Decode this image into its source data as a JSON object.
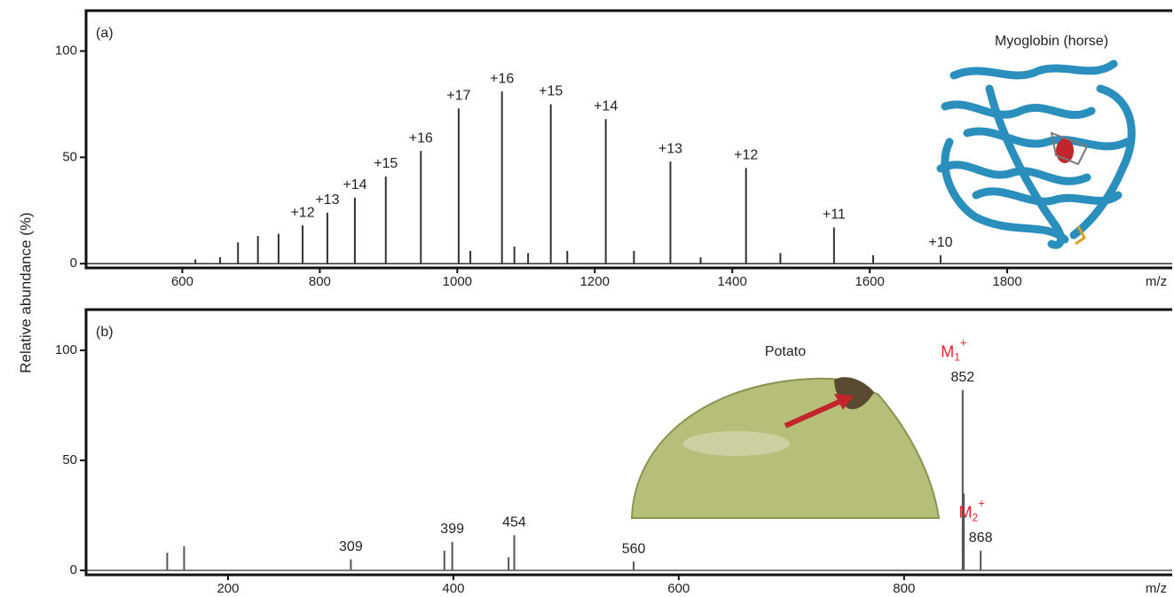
{
  "chart_data": [
    {
      "type": "stick",
      "panel": "(a)",
      "inset_title": "Myoglobin (horse)",
      "xlabel": "m/z",
      "ylabel": "Relative abundance (%)",
      "xlim": [
        460,
        2040
      ],
      "ylim": [
        -2,
        119
      ],
      "xticks": [
        600,
        800,
        1000,
        1200,
        1400,
        1600,
        1800
      ],
      "yticks": [
        0,
        50,
        100
      ],
      "color": "#333333",
      "x": [
        619,
        655,
        681,
        710,
        740,
        775,
        811,
        851,
        896,
        947,
        1002,
        1019,
        1065,
        1083,
        1103,
        1136,
        1160,
        1216,
        1257,
        1310,
        1354,
        1420,
        1470,
        1548,
        1605,
        1703
      ],
      "values": [
        2,
        3,
        10,
        13,
        14,
        18,
        24,
        31,
        41,
        53,
        73,
        6,
        81,
        8,
        5,
        75,
        6,
        68,
        6,
        48,
        3,
        45,
        5,
        17,
        4,
        4
      ],
      "peak_labels": [
        null,
        null,
        null,
        null,
        null,
        "+12",
        "+13",
        "+14",
        "+15",
        "+16",
        "+17",
        null,
        "+16",
        null,
        null,
        "+15",
        null,
        "+14",
        null,
        "+13",
        null,
        "+12",
        null,
        "+11",
        null,
        "+10"
      ]
    },
    {
      "type": "stick",
      "panel": "(b)",
      "inset_title": "Potato",
      "xlabel": "m/z",
      "xlim": [
        74,
        1038
      ],
      "ylim": [
        -2,
        118.5
      ],
      "xticks": [
        200,
        400,
        600,
        800
      ],
      "yticks": [
        0,
        50,
        100
      ],
      "color": "#555555",
      "x": [
        146,
        161,
        309,
        392,
        399,
        449,
        454,
        560,
        852,
        853,
        868
      ],
      "values": [
        8,
        11,
        5,
        9,
        13,
        6,
        16,
        4,
        82,
        35,
        9
      ],
      "peak_labels": [
        null,
        null,
        "309",
        null,
        "399",
        null,
        "454",
        "560",
        "852",
        null,
        "868"
      ],
      "ion_labels": [
        null,
        null,
        null,
        null,
        null,
        null,
        null,
        null,
        {
          "base": "M",
          "sub": "1",
          "sup": "+"
        },
        null,
        {
          "base": "M",
          "sub": "2",
          "sup": "+"
        }
      ],
      "ion_color": "#e8202a"
    }
  ]
}
